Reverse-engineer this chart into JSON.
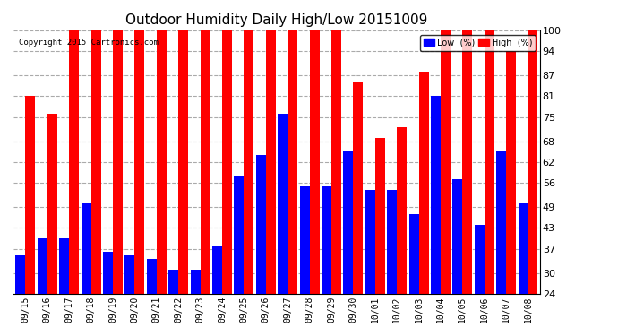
{
  "title": "Outdoor Humidity Daily High/Low 20151009",
  "copyright": "Copyright 2015 Cartronics.com",
  "categories": [
    "09/15",
    "09/16",
    "09/17",
    "09/18",
    "09/19",
    "09/20",
    "09/21",
    "09/22",
    "09/23",
    "09/24",
    "09/25",
    "09/26",
    "09/27",
    "09/28",
    "09/29",
    "09/30",
    "10/01",
    "10/02",
    "10/03",
    "10/04",
    "10/05",
    "10/06",
    "10/07",
    "10/08"
  ],
  "low_values": [
    35,
    40,
    40,
    50,
    36,
    35,
    34,
    31,
    31,
    38,
    58,
    64,
    76,
    55,
    55,
    65,
    54,
    54,
    47,
    81,
    57,
    44,
    65,
    50
  ],
  "high_values": [
    81,
    76,
    100,
    100,
    100,
    100,
    100,
    100,
    100,
    100,
    100,
    100,
    100,
    100,
    100,
    85,
    69,
    72,
    88,
    100,
    100,
    100,
    94,
    100
  ],
  "low_color": "#0000ff",
  "high_color": "#ff0000",
  "bg_color": "#ffffff",
  "ylim": [
    24,
    100
  ],
  "yticks": [
    24,
    30,
    37,
    43,
    49,
    56,
    62,
    68,
    75,
    81,
    87,
    94,
    100
  ],
  "grid_color": "#aaaaaa",
  "legend_low_label": "Low  (%)",
  "legend_high_label": "High  (%)"
}
